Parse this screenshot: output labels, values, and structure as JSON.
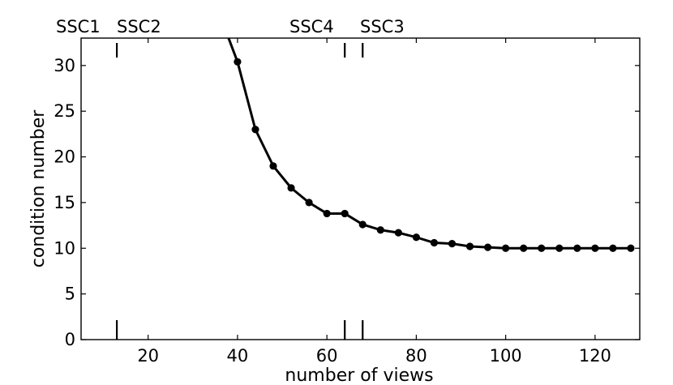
{
  "chart_data": {
    "type": "line",
    "title": "",
    "xlabel": "number of views",
    "ylabel": "condition number",
    "xlim": [
      5,
      130
    ],
    "ylim": [
      0,
      33
    ],
    "xticks": [
      20,
      40,
      60,
      80,
      100,
      120
    ],
    "yticks": [
      0,
      5,
      10,
      15,
      20,
      25,
      30
    ],
    "grid": false,
    "legend": "none",
    "line_color": "#000000",
    "series": [
      {
        "x": [
          38,
          40,
          44,
          48,
          52,
          56,
          60,
          64,
          68,
          72,
          76,
          80,
          84,
          88,
          92,
          96,
          100,
          104,
          108,
          112,
          116,
          120,
          124,
          128
        ],
        "y": [
          33.0,
          30.4,
          23.0,
          19.0,
          16.6,
          15.0,
          13.8,
          13.8,
          12.6,
          12.0,
          11.7,
          11.2,
          10.6,
          10.5,
          10.2,
          10.1,
          10.0,
          10.0,
          10.0,
          10.0,
          10.0,
          10.0,
          10.0,
          10.0
        ],
        "markers": [
          false,
          true,
          true,
          true,
          true,
          true,
          true,
          true,
          true,
          true,
          true,
          true,
          true,
          true,
          true,
          true,
          true,
          true,
          true,
          true,
          true,
          true,
          true,
          true
        ]
      }
    ],
    "vertical_markers": [
      {
        "label": "SSC1",
        "x": 13
      },
      {
        "label": "SSC2",
        "x": 13
      },
      {
        "label": "SSC4",
        "x": 64
      },
      {
        "label": "SSC3",
        "x": 68
      }
    ],
    "marker_label_text": [
      {
        "label": "SSC1"
      },
      {
        "label": "SSC2"
      },
      {
        "label": "SSC4"
      },
      {
        "label": "SSC3"
      }
    ]
  }
}
